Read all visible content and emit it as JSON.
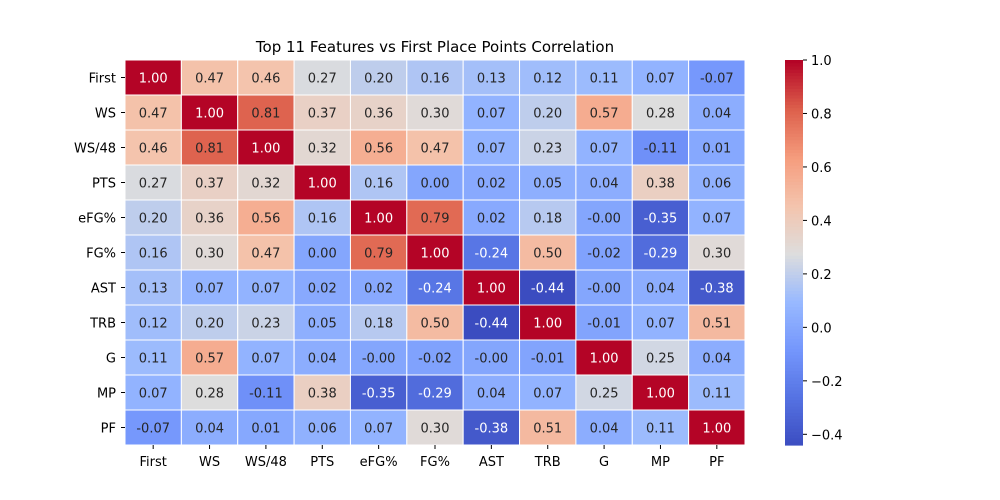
{
  "chart_data": {
    "type": "heatmap",
    "title": "Top 11 Features vs First Place Points Correlation",
    "xlabel": "",
    "ylabel": "",
    "labels": [
      "First",
      "WS",
      "WS/48",
      "PTS",
      "eFG%",
      "FG%",
      "AST",
      "TRB",
      "G",
      "MP",
      "PF"
    ],
    "matrix": [
      [
        1.0,
        0.47,
        0.46,
        0.27,
        0.2,
        0.16,
        0.13,
        0.12,
        0.11,
        0.07,
        -0.07
      ],
      [
        0.47,
        1.0,
        0.81,
        0.37,
        0.36,
        0.3,
        0.07,
        0.2,
        0.57,
        0.28,
        0.04
      ],
      [
        0.46,
        0.81,
        1.0,
        0.32,
        0.56,
        0.47,
        0.07,
        0.23,
        0.07,
        -0.11,
        0.01
      ],
      [
        0.27,
        0.37,
        0.32,
        1.0,
        0.16,
        0.0,
        0.02,
        0.05,
        0.04,
        0.38,
        0.06
      ],
      [
        0.2,
        0.36,
        0.56,
        0.16,
        1.0,
        0.79,
        0.02,
        0.18,
        -0.0,
        -0.35,
        0.07
      ],
      [
        0.16,
        0.3,
        0.47,
        0.0,
        0.79,
        1.0,
        -0.24,
        0.5,
        -0.02,
        -0.29,
        0.3
      ],
      [
        0.13,
        0.07,
        0.07,
        0.02,
        0.02,
        -0.24,
        1.0,
        -0.44,
        -0.0,
        0.04,
        -0.38
      ],
      [
        0.12,
        0.2,
        0.23,
        0.05,
        0.18,
        0.5,
        -0.44,
        1.0,
        -0.01,
        0.07,
        0.51
      ],
      [
        0.11,
        0.57,
        0.07,
        0.04,
        -0.0,
        -0.02,
        -0.0,
        -0.01,
        1.0,
        0.25,
        0.04
      ],
      [
        0.07,
        0.28,
        -0.11,
        0.38,
        -0.35,
        -0.29,
        0.04,
        0.07,
        0.25,
        1.0,
        0.11
      ],
      [
        -0.07,
        0.04,
        0.01,
        0.06,
        0.07,
        0.3,
        -0.38,
        0.51,
        0.04,
        0.11,
        1.0
      ]
    ],
    "colorbar": {
      "min": -0.44,
      "max": 1.0,
      "ticks": [
        1.0,
        0.8,
        0.6,
        0.4,
        0.2,
        0.0,
        -0.2,
        -0.4
      ],
      "tick_labels": [
        "1.0",
        "0.8",
        "0.6",
        "0.4",
        "0.2",
        "0.0",
        "−0.2",
        "−0.4"
      ]
    },
    "colormap": "coolwarm",
    "grid": false,
    "cell_border_color": "#ffffff"
  }
}
